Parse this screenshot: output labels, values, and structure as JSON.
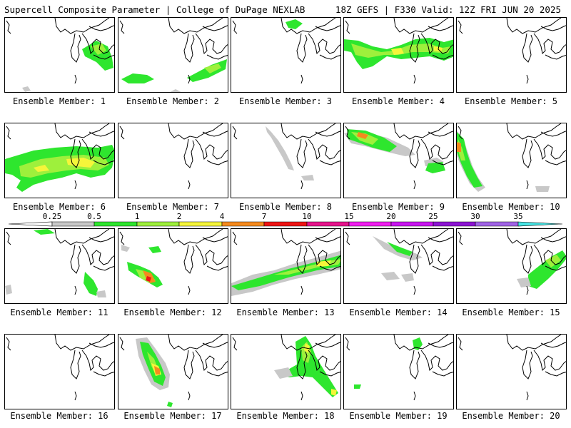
{
  "header": {
    "title": "Supercell Composite Parameter | College of DuPage NEXLAB",
    "run_info": "18Z GEFS | F330 Valid: 12Z FRI JUN 20 2025"
  },
  "label_prefix": "Ensemble Member:",
  "members": [
    {
      "label": "Ensemble Member: 1"
    },
    {
      "label": "Ensemble Member: 2"
    },
    {
      "label": "Ensemble Member: 3"
    },
    {
      "label": "Ensemble Member: 4"
    },
    {
      "label": "Ensemble Member: 5"
    },
    {
      "label": "Ensemble Member: 6"
    },
    {
      "label": "Ensemble Member: 7"
    },
    {
      "label": "Ensemble Member: 8"
    },
    {
      "label": "Ensemble Member: 9"
    },
    {
      "label": "Ensemble Member: 10"
    },
    {
      "label": "Ensemble Member: 11"
    },
    {
      "label": "Ensemble Member: 12"
    },
    {
      "label": "Ensemble Member: 13"
    },
    {
      "label": "Ensemble Member: 14"
    },
    {
      "label": "Ensemble Member: 15"
    },
    {
      "label": "Ensemble Member: 16"
    },
    {
      "label": "Ensemble Member: 17"
    },
    {
      "label": "Ensemble Member: 18"
    },
    {
      "label": "Ensemble Member: 19"
    },
    {
      "label": "Ensemble Member: 20"
    }
  ],
  "colorbar": {
    "ticks": [
      "0.25",
      "0.5",
      "1",
      "2",
      "4",
      "7",
      "10",
      "15",
      "20",
      "25",
      "30",
      "35"
    ],
    "colors": [
      "#ffffff",
      "#c8c8c8",
      "#2ee62e",
      "#9ef03c",
      "#f5f53a",
      "#f58a1e",
      "#ee1414",
      "#e6148c",
      "#f01ef0",
      "#c814f0",
      "#8c14d2",
      "#a064e6",
      "#46e6e6"
    ]
  },
  "shading_levels": {
    "gray": "#c8c8c8",
    "green": "#2ee62e",
    "lightgreen": "#9ef03c",
    "yellow": "#f5f53a",
    "orange": "#f58a1e",
    "red": "#ee1414"
  }
}
